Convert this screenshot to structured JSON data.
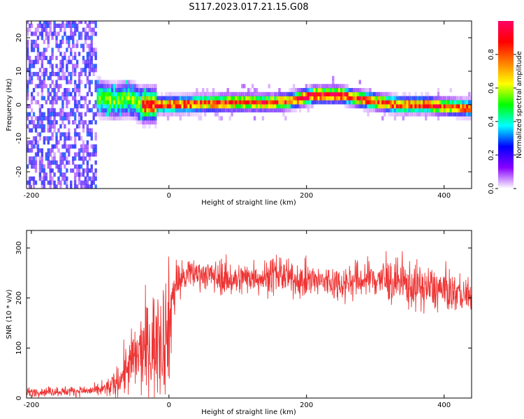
{
  "title": "S117.2023.017.21.15.G08",
  "chart_data": [
    {
      "type": "heatmap",
      "xlabel": "Height of straight line (km)",
      "ylabel": "Frequency (Hz)",
      "xlim": [
        -207,
        440
      ],
      "ylim": [
        -25,
        25
      ],
      "xticks": [
        -200,
        0,
        200,
        400
      ],
      "yticks": [
        -20,
        -10,
        0,
        10,
        20
      ],
      "colorbar": {
        "label": "Normalized spectral amplitude",
        "range": [
          0,
          1
        ],
        "ticks": [
          0.0,
          0.2,
          0.4,
          0.6,
          0.8
        ],
        "colors": [
          "#ffffff",
          "#8800ff",
          "#0000ff",
          "#00ffff",
          "#00ff00",
          "#ffff00",
          "#ff8000",
          "#ff0000",
          "#ff0066"
        ]
      },
      "ridge": {
        "x": [
          -120,
          -100,
          -80,
          -60,
          -40,
          -20,
          0,
          50,
          100,
          150,
          170,
          190,
          210,
          250,
          270,
          300,
          330,
          370,
          400,
          440
        ],
        "y": [
          3,
          2,
          1,
          2,
          0,
          0,
          0,
          0.5,
          0.7,
          0.7,
          1,
          2,
          3,
          3,
          2,
          1,
          0,
          0,
          -0.5,
          -1
        ]
      }
    },
    {
      "type": "line",
      "xlabel": "Height of straight line (km)",
      "ylabel": "SNR (10 * v/v)",
      "xlim": [
        -207,
        440
      ],
      "ylim": [
        0,
        335
      ],
      "xticks": [
        -200,
        0,
        200,
        400
      ],
      "yticks": [
        0,
        100,
        200,
        300
      ],
      "color": "#ee3333",
      "envelope": {
        "x": [
          -207,
          -100,
          -80,
          -60,
          -40,
          -20,
          0,
          5,
          10,
          20,
          40,
          60,
          80,
          100,
          120,
          140,
          160,
          180,
          200,
          250,
          300,
          350,
          400,
          440
        ],
        "mean": [
          12,
          15,
          25,
          60,
          90,
          110,
          140,
          200,
          230,
          240,
          250,
          245,
          240,
          235,
          245,
          240,
          250,
          235,
          235,
          230,
          240,
          225,
          215,
          205
        ],
        "spread": [
          6,
          8,
          18,
          40,
          60,
          80,
          90,
          60,
          35,
          25,
          20,
          22,
          25,
          25,
          22,
          25,
          30,
          20,
          25,
          25,
          30,
          35,
          30,
          22
        ]
      }
    }
  ]
}
